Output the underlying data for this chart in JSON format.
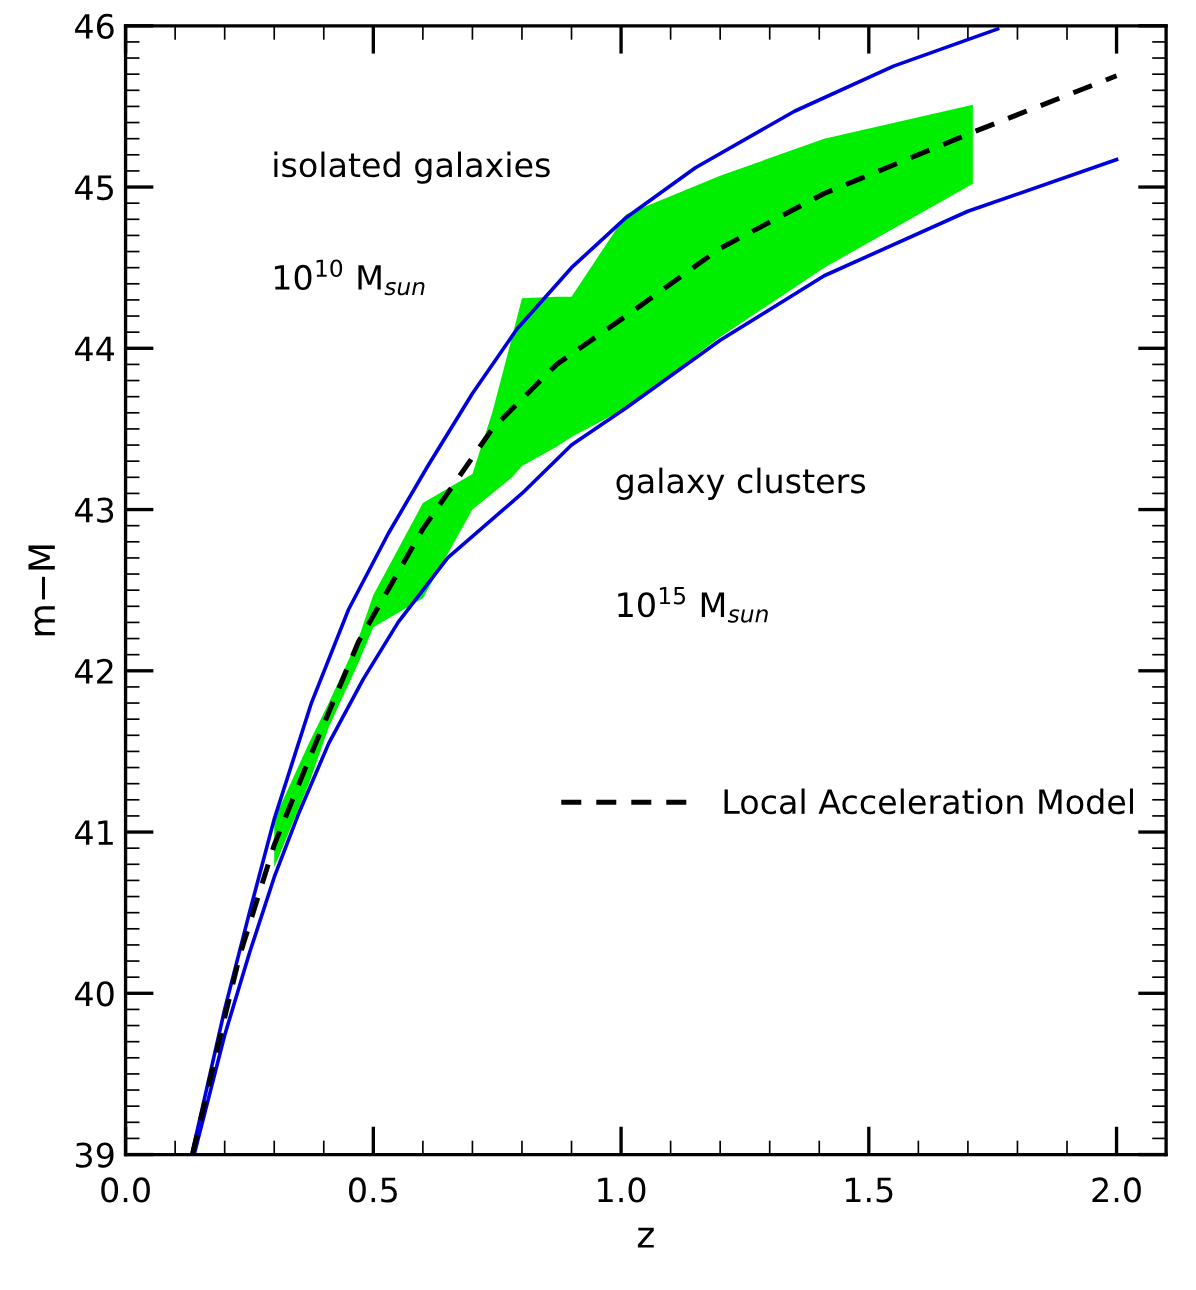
{
  "chart_data": {
    "type": "line",
    "xlabel": "z",
    "ylabel": "m−M",
    "xlim": [
      0,
      2.1
    ],
    "ylim": [
      39,
      46
    ],
    "xticks": [
      {
        "value": 0,
        "label": "0.0"
      },
      {
        "value": 0.5,
        "label": "0.5"
      },
      {
        "value": 1,
        "label": "1.0"
      },
      {
        "value": 1.5,
        "label": "1.5"
      },
      {
        "value": 2,
        "label": "2.0"
      }
    ],
    "yticks": [
      39,
      40,
      41,
      42,
      43,
      44,
      45,
      46
    ],
    "grid": false,
    "legend": "center right",
    "marker": "none",
    "series": [
      {
        "color": "#00ee00",
        "line_style": "none",
        "x": [
          0.3,
          0.37,
          0.41,
          0.47,
          0.5,
          0.6,
          0.7,
          0.74,
          0.78,
          0.8,
          0.87,
          0.9,
          1.01,
          1.2,
          1.41,
          1.71
        ],
        "values": [
          null,
          null,
          null,
          null,
          null,
          null,
          null,
          null,
          null,
          null,
          null,
          null,
          null,
          null,
          null,
          null
        ],
        "lower": [
          40.78,
          41.3,
          41.65,
          42.05,
          42.27,
          42.45,
          43.0,
          43.1,
          43.2,
          43.27,
          43.39,
          43.45,
          43.63,
          44.07,
          44.5,
          45.02
        ],
        "upper": [
          41.08,
          41.55,
          41.8,
          42.2,
          42.47,
          43.04,
          43.22,
          43.6,
          44.07,
          44.31,
          44.32,
          44.32,
          44.83,
          45.07,
          45.3,
          45.51
        ]
      },
      {
        "color": "#0000dd",
        "line_style": "solid",
        "x": [
          0.135,
          0.2,
          0.25,
          0.3,
          0.375,
          0.45,
          0.53,
          0.61,
          0.7,
          0.79,
          0.9,
          1.01,
          1.15,
          1.35,
          1.55,
          1.76
        ],
        "values": [
          39.02,
          39.9,
          40.5,
          41.08,
          41.8,
          42.38,
          42.85,
          43.27,
          43.72,
          44.12,
          44.5,
          44.81,
          45.12,
          45.47,
          45.75,
          45.98
        ]
      },
      {
        "color": "#0000dd",
        "line_style": "solid",
        "x": [
          0.14,
          0.2,
          0.25,
          0.3,
          0.35,
          0.41,
          0.48,
          0.55,
          0.65,
          0.8,
          0.9,
          1.01,
          1.2,
          1.41,
          1.7,
          2.0
        ],
        "values": [
          39.02,
          39.74,
          40.25,
          40.72,
          41.12,
          41.55,
          41.95,
          42.3,
          42.7,
          43.1,
          43.4,
          43.63,
          44.05,
          44.45,
          44.85,
          45.17
        ]
      },
      {
        "name": "Local Acceleration Model",
        "color": "#000000",
        "line_style": "dashed",
        "x": [
          0.135,
          0.2,
          0.23,
          0.3,
          0.37,
          0.47,
          0.6,
          0.74,
          0.87,
          1.01,
          1.2,
          1.41,
          1.71,
          2.0
        ],
        "values": [
          39.0,
          39.85,
          40.23,
          40.92,
          41.45,
          42.18,
          42.88,
          43.5,
          43.9,
          44.2,
          44.62,
          44.96,
          45.34,
          45.69
        ]
      }
    ],
    "annotations": [
      "isolated galaxies",
      "10$^{10}$ M$_{sun}$",
      "galaxy clusters",
      "10$^{15}$ M$_{sun}$"
    ]
  }
}
